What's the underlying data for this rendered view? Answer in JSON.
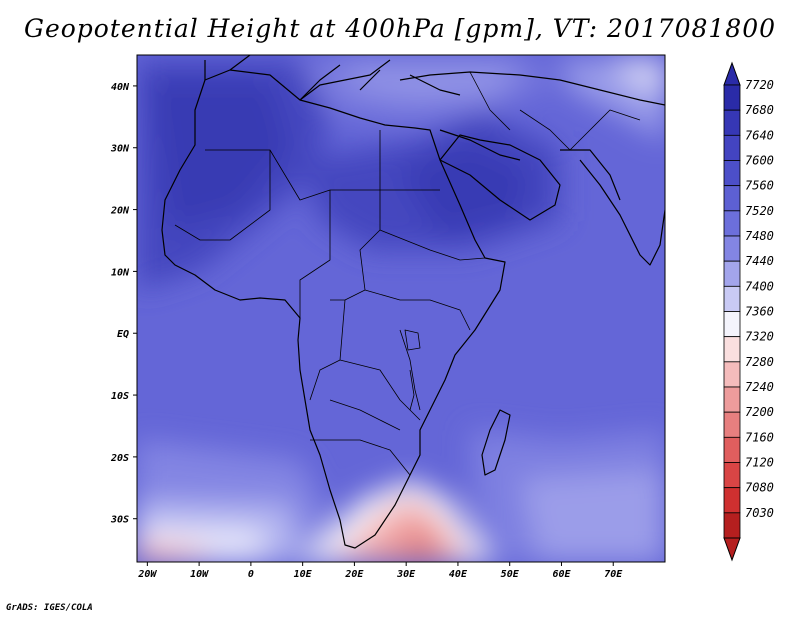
{
  "title": "Geopotential Height at 400hPa [gpm], VT: 2017081800",
  "credit": "GrADS: IGES/COLA",
  "map": {
    "lon_range": [
      -22,
      80
    ],
    "lat_range": [
      -37,
      45
    ],
    "lon_ticks": [
      {
        "value": -20,
        "label": "20W"
      },
      {
        "value": -10,
        "label": "10W"
      },
      {
        "value": 0,
        "label": "0"
      },
      {
        "value": 10,
        "label": "10E"
      },
      {
        "value": 20,
        "label": "20E"
      },
      {
        "value": 30,
        "label": "30E"
      },
      {
        "value": 40,
        "label": "40E"
      },
      {
        "value": 50,
        "label": "50E"
      },
      {
        "value": 60,
        "label": "60E"
      },
      {
        "value": 70,
        "label": "70E"
      }
    ],
    "lat_ticks": [
      {
        "value": 40,
        "label": "40N"
      },
      {
        "value": 30,
        "label": "30N"
      },
      {
        "value": 20,
        "label": "20N"
      },
      {
        "value": 10,
        "label": "10N"
      },
      {
        "value": 0,
        "label": "EQ"
      },
      {
        "value": -10,
        "label": "10S"
      },
      {
        "value": -20,
        "label": "20S"
      },
      {
        "value": -30,
        "label": "30S"
      }
    ]
  },
  "colorbar": {
    "levels": [
      "7720",
      "7680",
      "7640",
      "7600",
      "7560",
      "7520",
      "7480",
      "7440",
      "7400",
      "7360",
      "7320",
      "7280",
      "7240",
      "7200",
      "7160",
      "7120",
      "7080",
      "7030"
    ],
    "colors": [
      "#2a2ba8",
      "#3637b5",
      "#4344c1",
      "#4c4fc9",
      "#5d60d3",
      "#6c6fdb",
      "#8385e3",
      "#a3a5ec",
      "#c9caf5",
      "#f4f4fc",
      "#fadfdf",
      "#f5bcbc",
      "#ee9c9c",
      "#e77f7f",
      "#e05e5e",
      "#d94545",
      "#cf3030",
      "#b51f1f"
    ]
  }
}
